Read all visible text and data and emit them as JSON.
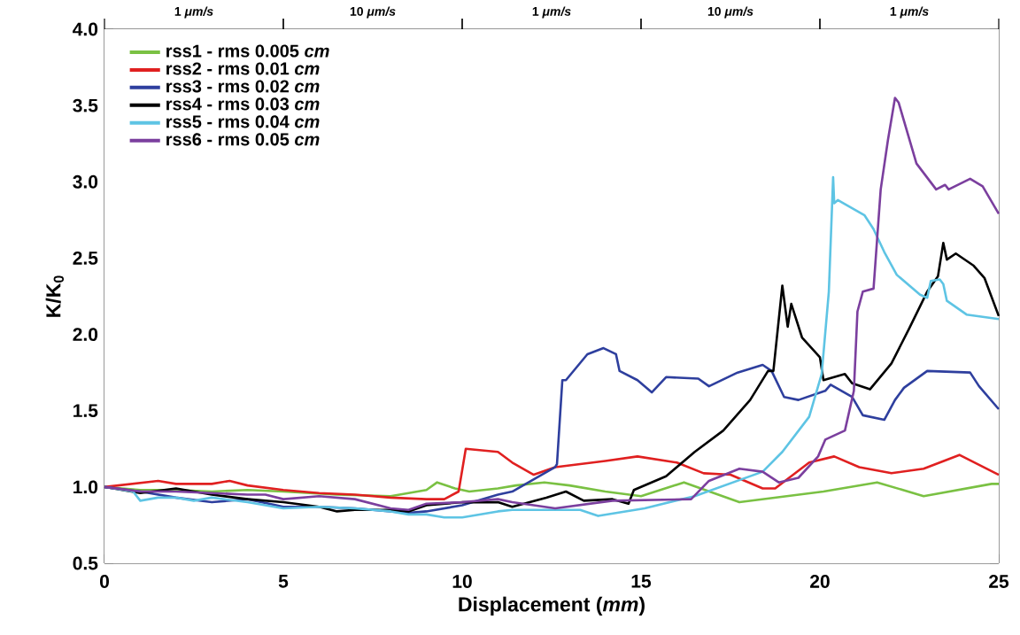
{
  "chart_data": {
    "type": "line",
    "xlabel": "Displacement (*mm*)",
    "ylabel": "K/K$_{0}$",
    "xlim": [
      0,
      25
    ],
    "xticks": [
      0,
      5,
      10,
      15,
      20,
      25
    ],
    "ylim": [
      0.5,
      4.0
    ],
    "yticks": [
      {
        "value": 0.5,
        "label": "0.5"
      },
      {
        "value": 1.0,
        "label": "1.0"
      },
      {
        "value": 1.5,
        "label": "1.5"
      },
      {
        "value": 2.0,
        "label": "2.0"
      },
      {
        "value": 2.5,
        "label": "2.5"
      },
      {
        "value": 3.0,
        "label": "3.0"
      },
      {
        "value": 3.5,
        "label": "3.5"
      },
      {
        "value": 4.0,
        "label": "4.0"
      }
    ],
    "grid": false,
    "legend": "top left",
    "marker": "none",
    "line_style": "solid",
    "bands": [
      {
        "axis": "x",
        "from": 0,
        "to": 5,
        "label": "1 *μm/s*",
        "color": "#ffffff"
      },
      {
        "axis": "x",
        "from": 5,
        "to": 10,
        "label": "10 *μm/s*",
        "color": "#ffffff"
      },
      {
        "axis": "x",
        "from": 10,
        "to": 15,
        "label": "1 *μm/s*",
        "color": "#ffffff"
      },
      {
        "axis": "x",
        "from": 15,
        "to": 20,
        "label": "10 *μm/s*",
        "color": "#ffffff"
      },
      {
        "axis": "x",
        "from": 20,
        "to": 25,
        "label": "1 *μm/s*",
        "color": "#ffffff"
      }
    ],
    "series": [
      {
        "name": "rss1 - rms 0.005 *cm*",
        "color": "#7ac143",
        "x": [
          0,
          1,
          2,
          3,
          4,
          5,
          6.5,
          8,
          9,
          9.3,
          9.8,
          10.2,
          11,
          11.5,
          12.3,
          13,
          14,
          15.0,
          16.2,
          17.75,
          20.1,
          21.6,
          22.9,
          24.8,
          25
        ],
        "values": [
          1.0,
          0.98,
          0.98,
          0.97,
          0.98,
          0.97,
          0.95,
          0.94,
          0.98,
          1.03,
          0.99,
          0.97,
          0.99,
          1.01,
          1.03,
          1.01,
          0.97,
          0.94,
          1.03,
          0.9,
          0.97,
          1.03,
          0.94,
          1.02,
          1.02
        ]
      },
      {
        "name": "rss2 - rms 0.01 *cm*",
        "color": "#e02020",
        "x": [
          0,
          1.5,
          2,
          3,
          3.5,
          4,
          5,
          6,
          7,
          8,
          9,
          9.5,
          9.9,
          10.1,
          11,
          11.4,
          12.0,
          12.6,
          14.0,
          14.9,
          16.0,
          16.75,
          17.5,
          18.4,
          18.75,
          19.7,
          20.4,
          21.1,
          22.0,
          22.9,
          23.9,
          25
        ],
        "values": [
          1.0,
          1.04,
          1.02,
          1.02,
          1.04,
          1.01,
          0.98,
          0.96,
          0.95,
          0.93,
          0.92,
          0.92,
          0.97,
          1.25,
          1.23,
          1.16,
          1.08,
          1.13,
          1.17,
          1.2,
          1.16,
          1.09,
          1.08,
          0.99,
          0.99,
          1.16,
          1.2,
          1.13,
          1.09,
          1.12,
          1.21,
          1.08
        ]
      },
      {
        "name": "rss3 - rms 0.02 *cm*",
        "color": "#2e3f9e",
        "x": [
          0,
          1,
          2,
          3,
          4,
          5,
          6,
          7,
          8,
          8.5,
          9,
          10,
          11,
          11.4,
          12.6,
          12.65,
          12.8,
          12.9,
          13.5,
          13.95,
          14.3,
          14.4,
          14.9,
          15.3,
          15.7,
          16.6,
          16.9,
          17.7,
          18.4,
          18.65,
          19.0,
          19.4,
          20.15,
          20.3,
          20.9,
          21.2,
          21.8,
          22.1,
          22.35,
          23.0,
          24.2,
          24.45,
          25
        ],
        "values": [
          1.0,
          0.97,
          0.93,
          0.9,
          0.92,
          0.87,
          0.87,
          0.86,
          0.84,
          0.83,
          0.84,
          0.88,
          0.95,
          0.97,
          1.13,
          1.15,
          1.7,
          1.7,
          1.87,
          1.91,
          1.87,
          1.76,
          1.7,
          1.62,
          1.72,
          1.71,
          1.66,
          1.75,
          1.8,
          1.76,
          1.59,
          1.57,
          1.63,
          1.67,
          1.59,
          1.47,
          1.44,
          1.57,
          1.65,
          1.76,
          1.75,
          1.66,
          1.51
        ]
      },
      {
        "name": "rss4 - rms 0.03 *cm*",
        "color": "#000000",
        "x": [
          0,
          1,
          2,
          3,
          4,
          5,
          6,
          6.5,
          7,
          8,
          8.5,
          9,
          10,
          11,
          11.4,
          12.35,
          12.9,
          13.4,
          14.2,
          14.65,
          14.8,
          15.7,
          16.5,
          17.3,
          18.05,
          18.55,
          18.7,
          18.95,
          19.1,
          19.2,
          19.5,
          20.0,
          20.1,
          20.7,
          20.9,
          21.4,
          22.0,
          22.5,
          23.0,
          23.3,
          23.45,
          23.55,
          23.8,
          24.3,
          24.6,
          25
        ],
        "values": [
          1.0,
          0.96,
          0.99,
          0.95,
          0.92,
          0.9,
          0.87,
          0.84,
          0.85,
          0.85,
          0.84,
          0.88,
          0.9,
          0.9,
          0.87,
          0.93,
          0.97,
          0.91,
          0.92,
          0.89,
          0.98,
          1.07,
          1.23,
          1.37,
          1.57,
          1.76,
          1.76,
          2.32,
          2.05,
          2.2,
          1.98,
          1.85,
          1.7,
          1.74,
          1.68,
          1.64,
          1.81,
          2.04,
          2.28,
          2.38,
          2.6,
          2.49,
          2.53,
          2.45,
          2.37,
          2.12
        ]
      },
      {
        "name": "rss5 - rms 0.04 *cm*",
        "color": "#5ec4e4",
        "x": [
          0,
          0.8,
          1.0,
          1.5,
          2,
          2.5,
          3,
          4,
          4.5,
          5,
          6,
          7,
          8,
          8.5,
          9,
          9.5,
          10,
          11,
          11.4,
          13.3,
          13.8,
          15.1,
          16.5,
          18.4,
          18.95,
          19.7,
          20.05,
          20.25,
          20.37,
          20.4,
          20.5,
          21.25,
          21.5,
          21.8,
          22.15,
          22.8,
          23.0,
          23.1,
          23.35,
          23.45,
          23.55,
          24.1,
          25
        ],
        "values": [
          1.0,
          0.97,
          0.91,
          0.93,
          0.93,
          0.91,
          0.93,
          0.9,
          0.88,
          0.86,
          0.87,
          0.86,
          0.84,
          0.82,
          0.82,
          0.8,
          0.8,
          0.84,
          0.85,
          0.85,
          0.81,
          0.86,
          0.94,
          1.1,
          1.23,
          1.46,
          1.74,
          2.28,
          3.03,
          2.86,
          2.88,
          2.78,
          2.69,
          2.54,
          2.39,
          2.26,
          2.24,
          2.35,
          2.36,
          2.33,
          2.22,
          2.13,
          2.1
        ]
      },
      {
        "name": "rss6 - rms 0.05 *cm*",
        "color": "#7b3f9e",
        "x": [
          0,
          1,
          2,
          3,
          4,
          4.5,
          5,
          6,
          7,
          8,
          8.5,
          9,
          10,
          11,
          11.4,
          12.6,
          14.2,
          16.4,
          16.9,
          17.75,
          18.4,
          18.85,
          19.4,
          19.95,
          20.15,
          20.7,
          20.95,
          21.05,
          21.2,
          21.5,
          21.7,
          21.9,
          22.1,
          22.2,
          22.7,
          23.25,
          23.5,
          23.6,
          24.2,
          24.55,
          25
        ],
        "values": [
          1.0,
          0.97,
          0.97,
          0.96,
          0.95,
          0.95,
          0.92,
          0.94,
          0.92,
          0.86,
          0.85,
          0.89,
          0.9,
          0.92,
          0.9,
          0.86,
          0.91,
          0.92,
          1.04,
          1.12,
          1.1,
          1.03,
          1.06,
          1.2,
          1.31,
          1.37,
          1.63,
          2.15,
          2.28,
          2.3,
          2.95,
          3.27,
          3.55,
          3.52,
          3.12,
          2.95,
          2.98,
          2.95,
          3.02,
          2.97,
          2.79
        ]
      }
    ]
  }
}
